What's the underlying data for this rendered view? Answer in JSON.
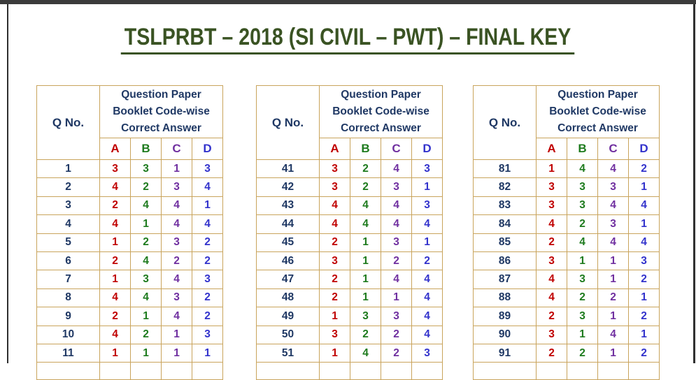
{
  "title": "TSLPRBT – 2018 (SI CIVIL – PWT) – FINAL KEY",
  "table_header": {
    "qno_label": "Q No.",
    "group_label": "Question Paper\nBooklet Code-wise\nCorrect Answer",
    "codes": [
      "A",
      "B",
      "C",
      "D"
    ]
  },
  "colors": {
    "title_green": "#3a5323",
    "header_navy": "#1f3864",
    "code_a_red": "#c00000",
    "code_b_green": "#1e7b1e",
    "code_c_purple": "#7030a0",
    "code_d_blue": "#3333cc",
    "table_border_tan": "#c9a45c",
    "frame_dark": "#3b3b3b"
  },
  "tables": [
    {
      "rows": [
        [
          1,
          3,
          3,
          1,
          3
        ],
        [
          2,
          4,
          2,
          3,
          4
        ],
        [
          3,
          2,
          4,
          4,
          1
        ],
        [
          4,
          4,
          1,
          4,
          4
        ],
        [
          5,
          1,
          2,
          3,
          2
        ],
        [
          6,
          2,
          4,
          2,
          2
        ],
        [
          7,
          1,
          3,
          4,
          3
        ],
        [
          8,
          4,
          4,
          3,
          2
        ],
        [
          9,
          2,
          1,
          4,
          2
        ],
        [
          10,
          4,
          2,
          1,
          3
        ],
        [
          11,
          1,
          1,
          1,
          1
        ]
      ]
    },
    {
      "rows": [
        [
          41,
          3,
          2,
          4,
          3
        ],
        [
          42,
          3,
          2,
          3,
          1
        ],
        [
          43,
          4,
          4,
          4,
          3
        ],
        [
          44,
          4,
          4,
          4,
          4
        ],
        [
          45,
          2,
          1,
          3,
          1
        ],
        [
          46,
          3,
          1,
          2,
          2
        ],
        [
          47,
          2,
          1,
          4,
          4
        ],
        [
          48,
          2,
          1,
          1,
          4
        ],
        [
          49,
          1,
          3,
          3,
          4
        ],
        [
          50,
          3,
          2,
          2,
          4
        ],
        [
          51,
          1,
          4,
          2,
          3
        ]
      ]
    },
    {
      "rows": [
        [
          81,
          1,
          4,
          4,
          2
        ],
        [
          82,
          3,
          3,
          3,
          1
        ],
        [
          83,
          3,
          3,
          4,
          4
        ],
        [
          84,
          4,
          2,
          3,
          1
        ],
        [
          85,
          2,
          4,
          4,
          4
        ],
        [
          86,
          3,
          1,
          1,
          3
        ],
        [
          87,
          4,
          3,
          1,
          2
        ],
        [
          88,
          4,
          2,
          2,
          1
        ],
        [
          89,
          2,
          3,
          1,
          2
        ],
        [
          90,
          3,
          1,
          4,
          1
        ],
        [
          91,
          2,
          2,
          1,
          2
        ]
      ]
    }
  ]
}
